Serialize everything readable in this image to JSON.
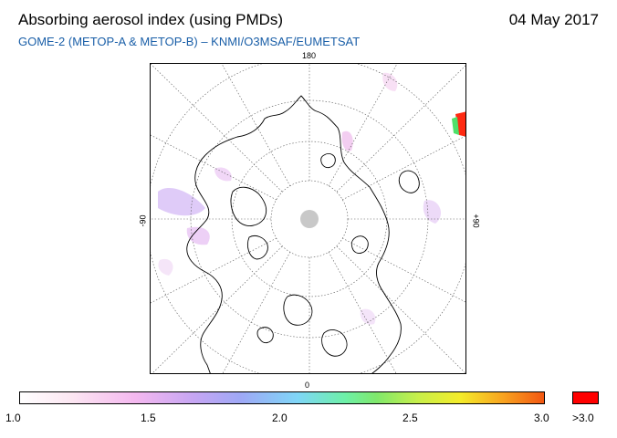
{
  "header": {
    "title": "Absorbing aerosol index (using PMDs)",
    "date": "04 May 2017",
    "subtitle": "GOME-2 (METOP-A & METOP-B)  –  KNMI/O3MSAF/EUMETSAT"
  },
  "map": {
    "projection": "polar stereographic (north pole)",
    "longitude_labels": {
      "top": "180",
      "bottom": "0",
      "left": "-90",
      "right": "+90"
    }
  },
  "colorbar": {
    "tick_labels": [
      "1.0",
      "1.5",
      "2.0",
      "2.5",
      "3.0"
    ],
    "overflow_label": ">3.0",
    "overflow_color": "#ff0000",
    "range": [
      1.0,
      3.0
    ]
  }
}
